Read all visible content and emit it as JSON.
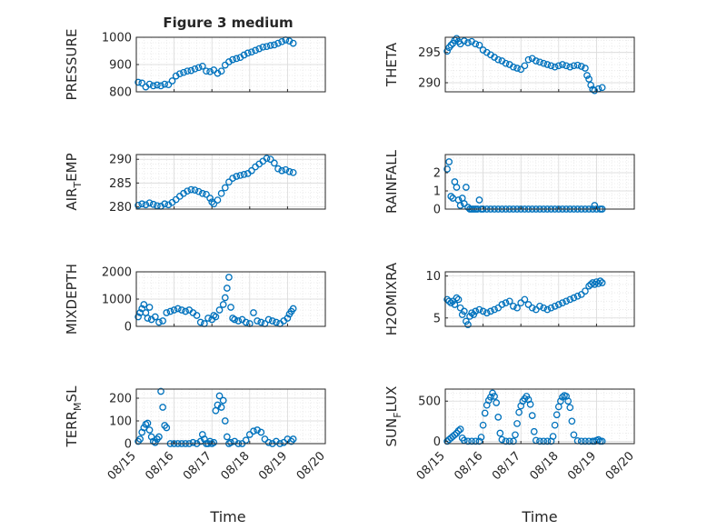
{
  "title": "Figure 3 medium",
  "xlabel": "Time",
  "x_ticks": [
    "08/15",
    "08/16",
    "08/17",
    "08/18",
    "08/19",
    "08/20"
  ],
  "colors": {
    "marker": "#0072BD",
    "axes": "#262626",
    "grid": "#D9D9D9",
    "background": "#FFFFFF"
  },
  "chart_data": [
    {
      "type": "scatter",
      "name": "PRESSURE",
      "ylabel": "PRESSURE",
      "ylim": [
        800,
        1000
      ],
      "yticks": [
        800,
        900,
        1000
      ],
      "ytick_labels": [
        "800",
        "900",
        "1000"
      ],
      "grid": true,
      "x": [
        15.05,
        15.15,
        15.25,
        15.35,
        15.45,
        15.55,
        15.65,
        15.75,
        15.85,
        15.95,
        16.05,
        16.15,
        16.25,
        16.35,
        16.45,
        16.55,
        16.65,
        16.75,
        16.85,
        16.95,
        17.05,
        17.15,
        17.25,
        17.35,
        17.45,
        17.55,
        17.65,
        17.75,
        17.85,
        17.95,
        18.05,
        18.15,
        18.25,
        18.35,
        18.45,
        18.55,
        18.65,
        18.75,
        18.85,
        18.95,
        19.05,
        19.15
      ],
      "y": [
        835,
        832,
        818,
        828,
        822,
        825,
        822,
        828,
        826,
        840,
        858,
        866,
        871,
        876,
        878,
        884,
        889,
        894,
        876,
        874,
        880,
        868,
        876,
        898,
        910,
        918,
        922,
        926,
        935,
        942,
        946,
        952,
        958,
        964,
        966,
        970,
        972,
        978,
        984,
        990,
        986,
        978
      ]
    },
    {
      "type": "scatter",
      "name": "THETA",
      "ylabel": "THETA",
      "ylim": [
        288.5,
        297.5
      ],
      "yticks": [
        290,
        295
      ],
      "ytick_labels": [
        "290",
        "295"
      ],
      "grid": true,
      "x": [
        15.05,
        15.1,
        15.15,
        15.2,
        15.25,
        15.3,
        15.35,
        15.4,
        15.5,
        15.6,
        15.7,
        15.8,
        15.9,
        16.0,
        16.1,
        16.2,
        16.3,
        16.4,
        16.5,
        16.6,
        16.7,
        16.8,
        16.9,
        17.0,
        17.1,
        17.2,
        17.3,
        17.4,
        17.5,
        17.6,
        17.7,
        17.8,
        17.9,
        18.0,
        18.1,
        18.2,
        18.3,
        18.4,
        18.5,
        18.6,
        18.7,
        18.75,
        18.8,
        18.85,
        18.9,
        18.95,
        19.05,
        19.15
      ],
      "y": [
        295.2,
        295.8,
        296.2,
        296.5,
        297.0,
        297.3,
        296.8,
        296.4,
        296.9,
        296.6,
        296.8,
        296.4,
        296.2,
        295.4,
        295.0,
        294.6,
        294.2,
        293.8,
        293.6,
        293.2,
        293.0,
        292.6,
        292.4,
        292.2,
        292.8,
        293.8,
        294.0,
        293.6,
        293.4,
        293.2,
        293.0,
        292.8,
        292.6,
        292.8,
        293.0,
        292.8,
        292.6,
        292.8,
        292.9,
        292.7,
        292.4,
        291.2,
        290.6,
        289.6,
        288.9,
        288.7,
        289.0,
        289.2
      ]
    },
    {
      "type": "scatter",
      "name": "AIR_TEMP",
      "ylabel": "AIR",
      "ylabel_sub": "T",
      "ylabel_rest": "EMP",
      "ylim": [
        279.5,
        291
      ],
      "yticks": [
        280,
        285,
        290
      ],
      "ytick_labels": [
        "280",
        "285",
        "290"
      ],
      "grid": true,
      "x": [
        15.05,
        15.15,
        15.25,
        15.35,
        15.45,
        15.55,
        15.65,
        15.75,
        15.85,
        15.95,
        16.05,
        16.15,
        16.25,
        16.35,
        16.45,
        16.55,
        16.65,
        16.75,
        16.85,
        16.95,
        17.0,
        17.05,
        17.15,
        17.25,
        17.35,
        17.45,
        17.55,
        17.65,
        17.75,
        17.85,
        17.95,
        18.05,
        18.15,
        18.25,
        18.35,
        18.45,
        18.55,
        18.65,
        18.75,
        18.85,
        18.95,
        19.05,
        19.15
      ],
      "y": [
        280.3,
        280.6,
        280.4,
        280.8,
        280.5,
        280.2,
        280.1,
        280.6,
        280.4,
        280.9,
        281.5,
        282.2,
        282.8,
        283.3,
        283.6,
        283.5,
        283.2,
        282.8,
        282.6,
        281.8,
        281.0,
        280.6,
        281.4,
        282.8,
        284.0,
        285.2,
        286.0,
        286.4,
        286.6,
        286.8,
        287.0,
        287.6,
        288.4,
        289.0,
        289.6,
        290.2,
        290.0,
        289.2,
        288.0,
        287.6,
        287.8,
        287.4,
        287.2
      ]
    },
    {
      "type": "scatter",
      "name": "RAINFALL",
      "ylabel": "RAINFALL",
      "ylim": [
        0,
        3
      ],
      "yticks": [
        0,
        1,
        2
      ],
      "ytick_labels": [
        "0",
        "1",
        "2"
      ],
      "grid": true,
      "x": [
        15.05,
        15.1,
        15.15,
        15.2,
        15.25,
        15.3,
        15.35,
        15.4,
        15.45,
        15.5,
        15.55,
        15.6,
        15.65,
        15.7,
        15.75,
        15.8,
        15.85,
        15.9,
        15.95,
        16.0,
        16.1,
        16.2,
        16.3,
        16.4,
        16.5,
        16.6,
        16.7,
        16.8,
        16.9,
        17.0,
        17.1,
        17.2,
        17.3,
        17.4,
        17.5,
        17.6,
        17.7,
        17.8,
        17.9,
        18.0,
        18.1,
        18.2,
        18.3,
        18.4,
        18.5,
        18.6,
        18.7,
        18.8,
        18.9,
        18.95,
        19.0,
        19.1,
        19.15
      ],
      "y": [
        2.2,
        2.6,
        0.7,
        0.6,
        1.5,
        1.2,
        0.5,
        0.2,
        0.6,
        0.3,
        1.2,
        0.1,
        0.0,
        0.0,
        0.0,
        0.0,
        0.0,
        0.5,
        0.0,
        0.0,
        0.0,
        0.0,
        0.0,
        0.0,
        0.0,
        0.0,
        0.0,
        0.0,
        0.0,
        0.0,
        0.0,
        0.0,
        0.0,
        0.0,
        0.0,
        0.0,
        0.0,
        0.0,
        0.0,
        0.0,
        0.0,
        0.0,
        0.0,
        0.0,
        0.0,
        0.0,
        0.0,
        0.0,
        0.0,
        0.2,
        0.0,
        0.0,
        0.0
      ]
    },
    {
      "type": "scatter",
      "name": "MIXDEPTH",
      "ylabel": "MIXDEPTH",
      "ylim": [
        0,
        2000
      ],
      "yticks": [
        0,
        1000,
        2000
      ],
      "ytick_labels": [
        "0",
        "1000",
        "2000"
      ],
      "grid": true,
      "x": [
        15.05,
        15.1,
        15.15,
        15.2,
        15.25,
        15.3,
        15.35,
        15.4,
        15.5,
        15.6,
        15.7,
        15.8,
        15.9,
        16.0,
        16.1,
        16.2,
        16.3,
        16.4,
        16.5,
        16.6,
        16.7,
        16.8,
        16.9,
        17.0,
        17.05,
        17.1,
        17.2,
        17.3,
        17.35,
        17.4,
        17.45,
        17.5,
        17.55,
        17.6,
        17.7,
        17.8,
        17.9,
        18.0,
        18.1,
        18.2,
        18.3,
        18.4,
        18.5,
        18.6,
        18.7,
        18.8,
        18.9,
        19.0,
        19.05,
        19.1,
        19.15
      ],
      "y": [
        350,
        500,
        650,
        800,
        500,
        300,
        700,
        250,
        350,
        150,
        200,
        500,
        550,
        600,
        650,
        600,
        550,
        600,
        500,
        400,
        150,
        100,
        300,
        250,
        400,
        350,
        600,
        800,
        1050,
        1400,
        1800,
        700,
        300,
        250,
        200,
        250,
        150,
        100,
        500,
        200,
        150,
        100,
        250,
        200,
        150,
        100,
        200,
        300,
        450,
        550,
        650
      ]
    },
    {
      "type": "scatter",
      "name": "H2OMIXRA",
      "ylabel": "H2OMIXRA",
      "ylim": [
        4,
        10.5
      ],
      "yticks": [
        5,
        10
      ],
      "ytick_labels": [
        "5",
        "10"
      ],
      "grid": true,
      "x": [
        15.05,
        15.1,
        15.15,
        15.2,
        15.25,
        15.3,
        15.35,
        15.4,
        15.45,
        15.5,
        15.55,
        15.6,
        15.65,
        15.7,
        15.75,
        15.8,
        15.9,
        16.0,
        16.1,
        16.2,
        16.3,
        16.4,
        16.5,
        16.6,
        16.7,
        16.8,
        16.9,
        17.0,
        17.1,
        17.2,
        17.3,
        17.4,
        17.5,
        17.6,
        17.7,
        17.8,
        17.9,
        18.0,
        18.1,
        18.2,
        18.3,
        18.4,
        18.5,
        18.6,
        18.7,
        18.8,
        18.85,
        18.9,
        18.95,
        19.0,
        19.05,
        19.1,
        19.15
      ],
      "y": [
        7.2,
        7.0,
        6.8,
        7.0,
        6.6,
        7.4,
        7.2,
        6.2,
        5.4,
        5.8,
        4.6,
        4.2,
        5.2,
        5.6,
        5.4,
        5.8,
        6.0,
        5.8,
        5.6,
        5.8,
        6.0,
        6.2,
        6.6,
        6.8,
        7.0,
        6.4,
        6.2,
        6.8,
        7.2,
        6.6,
        6.2,
        6.0,
        6.4,
        6.2,
        6.0,
        6.2,
        6.4,
        6.6,
        6.8,
        7.0,
        7.2,
        7.4,
        7.6,
        7.8,
        8.2,
        8.8,
        9.0,
        9.2,
        9.0,
        9.3,
        9.1,
        9.4,
        9.2
      ]
    },
    {
      "type": "scatter",
      "name": "TERR_MSL",
      "ylabel": "TERR",
      "ylabel_sub": "M",
      "ylabel_rest": "SL",
      "ylim": [
        0,
        240
      ],
      "yticks": [
        0,
        100,
        200
      ],
      "ytick_labels": [
        "0",
        "100",
        "200"
      ],
      "grid": true,
      "x": [
        15.05,
        15.1,
        15.15,
        15.2,
        15.25,
        15.3,
        15.35,
        15.4,
        15.45,
        15.5,
        15.55,
        15.6,
        15.65,
        15.7,
        15.75,
        15.8,
        15.9,
        16.0,
        16.1,
        16.2,
        16.3,
        16.4,
        16.5,
        16.6,
        16.7,
        16.75,
        16.8,
        16.85,
        16.9,
        16.95,
        17.0,
        17.05,
        17.1,
        17.15,
        17.2,
        17.25,
        17.3,
        17.35,
        17.4,
        17.45,
        17.5,
        17.6,
        17.7,
        17.8,
        17.9,
        18.0,
        18.1,
        18.2,
        18.3,
        18.4,
        18.5,
        18.6,
        18.7,
        18.8,
        18.9,
        19.0,
        19.1,
        19.15
      ],
      "y": [
        10,
        20,
        50,
        70,
        85,
        90,
        60,
        30,
        10,
        5,
        20,
        30,
        230,
        160,
        80,
        70,
        0,
        0,
        0,
        0,
        0,
        0,
        5,
        0,
        10,
        40,
        20,
        0,
        0,
        10,
        0,
        5,
        145,
        170,
        210,
        160,
        190,
        100,
        30,
        0,
        5,
        10,
        0,
        0,
        15,
        40,
        55,
        60,
        50,
        20,
        5,
        0,
        10,
        0,
        5,
        20,
        10,
        20
      ]
    },
    {
      "type": "scatter",
      "name": "SUN_FLUX",
      "ylabel": "SUN",
      "ylabel_sub": "F",
      "ylabel_rest": "LUX",
      "ylim": [
        -30,
        650
      ],
      "yticks": [
        0,
        500
      ],
      "ytick_labels": [
        "0",
        "500"
      ],
      "grid": true,
      "x": [
        15.05,
        15.1,
        15.15,
        15.2,
        15.25,
        15.3,
        15.35,
        15.4,
        15.45,
        15.5,
        15.6,
        15.7,
        15.8,
        15.9,
        15.95,
        16.0,
        16.05,
        16.1,
        16.15,
        16.2,
        16.25,
        16.3,
        16.35,
        16.4,
        16.45,
        16.5,
        16.6,
        16.7,
        16.8,
        16.85,
        16.9,
        16.95,
        17.0,
        17.05,
        17.1,
        17.15,
        17.2,
        17.25,
        17.3,
        17.35,
        17.4,
        17.5,
        17.6,
        17.7,
        17.8,
        17.85,
        17.9,
        17.95,
        18.0,
        18.05,
        18.1,
        18.15,
        18.2,
        18.25,
        18.3,
        18.35,
        18.4,
        18.5,
        18.6,
        18.7,
        18.8,
        18.9,
        18.95,
        19.0,
        19.05,
        19.1,
        19.15
      ],
      "y": [
        0,
        20,
        40,
        60,
        80,
        100,
        130,
        150,
        40,
        10,
        0,
        0,
        0,
        0,
        50,
        200,
        350,
        450,
        510,
        550,
        600,
        560,
        480,
        300,
        100,
        20,
        0,
        0,
        0,
        80,
        220,
        360,
        440,
        500,
        530,
        560,
        520,
        460,
        320,
        120,
        10,
        0,
        0,
        0,
        0,
        60,
        200,
        330,
        430,
        500,
        550,
        570,
        560,
        500,
        420,
        250,
        80,
        5,
        0,
        0,
        0,
        0,
        0,
        10,
        20,
        0,
        0
      ]
    }
  ]
}
